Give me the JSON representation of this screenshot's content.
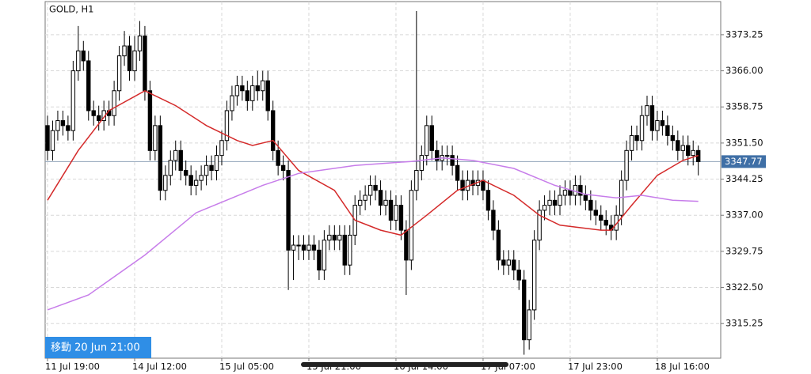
{
  "chart_data": {
    "type": "candlestick",
    "title": "GOLD, H1",
    "categories": [
      "11 Jul 19:00",
      null,
      null,
      null,
      null,
      null,
      null,
      null,
      null,
      null,
      null,
      null,
      null,
      null,
      null,
      null,
      null,
      "14 Jul 12:00",
      null,
      null,
      null,
      null,
      null,
      null,
      null,
      null,
      null,
      null,
      null,
      null,
      null,
      null,
      null,
      null,
      "15 Jul 05:00",
      null,
      null,
      null,
      null,
      null,
      null,
      null,
      null,
      null,
      null,
      null,
      null,
      null,
      null,
      null,
      null,
      "15 Jul 21:00",
      null,
      null,
      null,
      null,
      null,
      null,
      null,
      null,
      null,
      null,
      null,
      null,
      null,
      null,
      null,
      null,
      "16 Jul 14:00",
      null,
      null,
      null,
      null,
      null,
      null,
      null,
      null,
      null,
      null,
      null,
      null,
      null,
      null,
      null,
      null,
      "17 Jul 07:00",
      null,
      null,
      null,
      null,
      null,
      null,
      null,
      null,
      null,
      null,
      null,
      null,
      null,
      null,
      null,
      null,
      "17 Jul 23:00",
      null,
      null,
      null,
      null,
      null,
      null,
      null,
      null,
      null,
      null,
      null,
      null,
      null,
      null,
      null,
      null,
      "18 Jul 16:00",
      null,
      null,
      null,
      null,
      null,
      null,
      null,
      null
    ],
    "ohlc": [
      [
        3355,
        3357,
        3348,
        3350
      ],
      [
        3350,
        3356,
        3348,
        3354
      ],
      [
        3354,
        3358,
        3352,
        3356
      ],
      [
        3356,
        3358,
        3353,
        3355
      ],
      [
        3355,
        3357,
        3352,
        3354
      ],
      [
        3354,
        3368,
        3352,
        3366
      ],
      [
        3366,
        3375,
        3364,
        3370
      ],
      [
        3370,
        3372,
        3366,
        3368
      ],
      [
        3368,
        3370,
        3356,
        3358
      ],
      [
        3358,
        3360,
        3355,
        3357
      ],
      [
        3357,
        3359,
        3354,
        3356
      ],
      [
        3356,
        3360,
        3354,
        3358
      ],
      [
        3358,
        3360,
        3355,
        3357
      ],
      [
        3357,
        3364,
        3355,
        3362
      ],
      [
        3362,
        3371,
        3360,
        3369
      ],
      [
        3369,
        3374,
        3367,
        3371
      ],
      [
        3371,
        3373,
        3364,
        3366
      ],
      [
        3366,
        3373,
        3364,
        3370
      ],
      [
        3370,
        3376,
        3368,
        3373
      ],
      [
        3373,
        3375,
        3360,
        3362
      ],
      [
        3362,
        3364,
        3348,
        3350
      ],
      [
        3350,
        3357,
        3348,
        3355
      ],
      [
        3355,
        3357,
        3340,
        3342
      ],
      [
        3342,
        3347,
        3340,
        3345
      ],
      [
        3345,
        3350,
        3343,
        3348
      ],
      [
        3348,
        3352,
        3346,
        3350
      ],
      [
        3350,
        3352,
        3344,
        3346
      ],
      [
        3346,
        3348,
        3343,
        3345
      ],
      [
        3345,
        3347,
        3341,
        3343
      ],
      [
        3343,
        3346,
        3341,
        3344
      ],
      [
        3344,
        3347,
        3342,
        3345
      ],
      [
        3345,
        3349,
        3343,
        3347
      ],
      [
        3347,
        3349,
        3344,
        3346
      ],
      [
        3346,
        3351,
        3344,
        3349
      ],
      [
        3349,
        3354,
        3347,
        3352
      ],
      [
        3352,
        3360,
        3350,
        3358
      ],
      [
        3358,
        3363,
        3356,
        3361
      ],
      [
        3361,
        3365,
        3359,
        3363
      ],
      [
        3363,
        3365,
        3360,
        3362
      ],
      [
        3362,
        3364,
        3358,
        3360
      ],
      [
        3360,
        3365,
        3358,
        3363
      ],
      [
        3363,
        3366,
        3360,
        3362
      ],
      [
        3362,
        3366,
        3360,
        3364
      ],
      [
        3364,
        3366,
        3356,
        3358
      ],
      [
        3358,
        3360,
        3348,
        3350
      ],
      [
        3350,
        3352,
        3345,
        3347
      ],
      [
        3347,
        3349,
        3344,
        3346
      ],
      [
        3346,
        3348,
        3322,
        3330
      ],
      [
        3330,
        3333,
        3324,
        3331
      ],
      [
        3331,
        3333,
        3328,
        3331
      ],
      [
        3331,
        3333,
        3328,
        3330
      ],
      [
        3330,
        3333,
        3328,
        3331
      ],
      [
        3331,
        3333,
        3328,
        3330
      ],
      [
        3330,
        3332,
        3324,
        3326
      ],
      [
        3326,
        3334,
        3324,
        3332
      ],
      [
        3332,
        3335,
        3330,
        3333
      ],
      [
        3333,
        3335,
        3330,
        3332
      ],
      [
        3332,
        3335,
        3330,
        3333
      ],
      [
        3333,
        3335,
        3325,
        3327
      ],
      [
        3327,
        3335,
        3325,
        3333
      ],
      [
        3333,
        3341,
        3331,
        3339
      ],
      [
        3339,
        3342,
        3337,
        3340
      ],
      [
        3340,
        3343,
        3338,
        3341
      ],
      [
        3341,
        3345,
        3339,
        3343
      ],
      [
        3343,
        3345,
        3340,
        3342
      ],
      [
        3342,
        3344,
        3337,
        3339
      ],
      [
        3339,
        3342,
        3337,
        3340
      ],
      [
        3340,
        3342,
        3334,
        3336
      ],
      [
        3336,
        3341,
        3334,
        3339
      ],
      [
        3339,
        3341,
        3332,
        3334
      ],
      [
        3334,
        3336,
        3321,
        3328
      ],
      [
        3328,
        3344,
        3326,
        3342
      ],
      [
        3342,
        3378,
        3340,
        3346
      ],
      [
        3346,
        3351,
        3344,
        3349
      ],
      [
        3349,
        3357,
        3347,
        3355
      ],
      [
        3355,
        3357,
        3348,
        3350
      ],
      [
        3350,
        3352,
        3346,
        3348
      ],
      [
        3348,
        3351,
        3346,
        3349
      ],
      [
        3349,
        3351,
        3347,
        3349
      ],
      [
        3349,
        3351,
        3345,
        3347
      ],
      [
        3347,
        3349,
        3342,
        3344
      ],
      [
        3344,
        3346,
        3340,
        3342
      ],
      [
        3342,
        3346,
        3340,
        3344
      ],
      [
        3344,
        3346,
        3341,
        3343
      ],
      [
        3343,
        3346,
        3341,
        3344
      ],
      [
        3344,
        3346,
        3340,
        3342
      ],
      [
        3342,
        3344,
        3336,
        3338
      ],
      [
        3338,
        3340,
        3332,
        3334
      ],
      [
        3334,
        3336,
        3326,
        3328
      ],
      [
        3328,
        3330,
        3325,
        3327
      ],
      [
        3327,
        3330,
        3325,
        3328
      ],
      [
        3328,
        3330,
        3324,
        3326
      ],
      [
        3326,
        3328,
        3322,
        3324
      ],
      [
        3324,
        3326,
        3309,
        3312
      ],
      [
        3312,
        3320,
        3310,
        3318
      ],
      [
        3318,
        3334,
        3316,
        3332
      ],
      [
        3332,
        3340,
        3330,
        3338
      ],
      [
        3338,
        3341,
        3336,
        3339
      ],
      [
        3339,
        3342,
        3337,
        3340
      ],
      [
        3340,
        3342,
        3337,
        3339
      ],
      [
        3339,
        3343,
        3337,
        3341
      ],
      [
        3341,
        3344,
        3339,
        3342
      ],
      [
        3342,
        3344,
        3339,
        3341
      ],
      [
        3341,
        3345,
        3339,
        3343
      ],
      [
        3343,
        3345,
        3339,
        3341
      ],
      [
        3341,
        3343,
        3338,
        3340
      ],
      [
        3340,
        3342,
        3336,
        3338
      ],
      [
        3338,
        3340,
        3335,
        3337
      ],
      [
        3337,
        3339,
        3334,
        3336
      ],
      [
        3336,
        3338,
        3333,
        3335
      ],
      [
        3335,
        3337,
        3332,
        3334
      ],
      [
        3334,
        3339,
        3332,
        3337
      ],
      [
        3337,
        3346,
        3335,
        3344
      ],
      [
        3344,
        3352,
        3342,
        3350
      ],
      [
        3350,
        3355,
        3348,
        3353
      ],
      [
        3353,
        3355,
        3350,
        3352
      ],
      [
        3352,
        3359,
        3350,
        3357
      ],
      [
        3357,
        3361,
        3355,
        3359
      ],
      [
        3359,
        3361,
        3352,
        3354
      ],
      [
        3354,
        3358,
        3352,
        3356
      ],
      [
        3356,
        3358,
        3353,
        3355
      ],
      [
        3355,
        3357,
        3351,
        3353
      ],
      [
        3353,
        3355,
        3350,
        3352
      ],
      [
        3352,
        3354,
        3348,
        3350
      ],
      [
        3350,
        3353,
        3348,
        3351
      ],
      [
        3351,
        3353,
        3347,
        3349
      ],
      [
        3349,
        3352,
        3347,
        3350
      ],
      [
        3350,
        3351,
        3345,
        3347.77
      ]
    ],
    "up_color": "#ffffff",
    "down_color": "#000000",
    "series": [
      {
        "color": "#d42a2a",
        "x": [
          0,
          6,
          12,
          19,
          25,
          31,
          37,
          40,
          44,
          49,
          56,
          60,
          65,
          69,
          74,
          80,
          85,
          91,
          96,
          100,
          108,
          110,
          114,
          119,
          124,
          127
        ],
        "values": [
          3340,
          3350,
          3358,
          3362,
          3359,
          3355,
          3352,
          3351,
          3352,
          3346,
          3342,
          3336,
          3334,
          3333,
          3337,
          3342,
          3344,
          3341,
          3337,
          3335,
          3334,
          3334,
          3339,
          3345,
          3348,
          3349
        ]
      },
      {
        "color": "#c77dea",
        "x": [
          0,
          8,
          19,
          29,
          42,
          49,
          60,
          71,
          77,
          83,
          91,
          99,
          105,
          111,
          116,
          122,
          127
        ],
        "values": [
          3318,
          3321,
          3329,
          3337.5,
          3343,
          3345.4,
          3347,
          3347.8,
          3348.5,
          3348,
          3346.4,
          3343,
          3341.2,
          3340.5,
          3341,
          3340,
          3339.8
        ]
      }
    ],
    "ylim": [
      3308.3,
      3379.9
    ],
    "yticks": [
      3373.25,
      {
        "value": 3366,
        "label": "3366.00"
      },
      3358.75,
      {
        "value": 3351.5,
        "label": "3351.50"
      },
      3344.25,
      {
        "value": 3337,
        "label": "3337.00"
      },
      3329.75,
      {
        "value": 3322.5,
        "label": "3322.50"
      },
      3315.25
    ],
    "last_price": 3347.77,
    "grid": true,
    "overlay_label": "移動 20 Jun 21:00"
  }
}
